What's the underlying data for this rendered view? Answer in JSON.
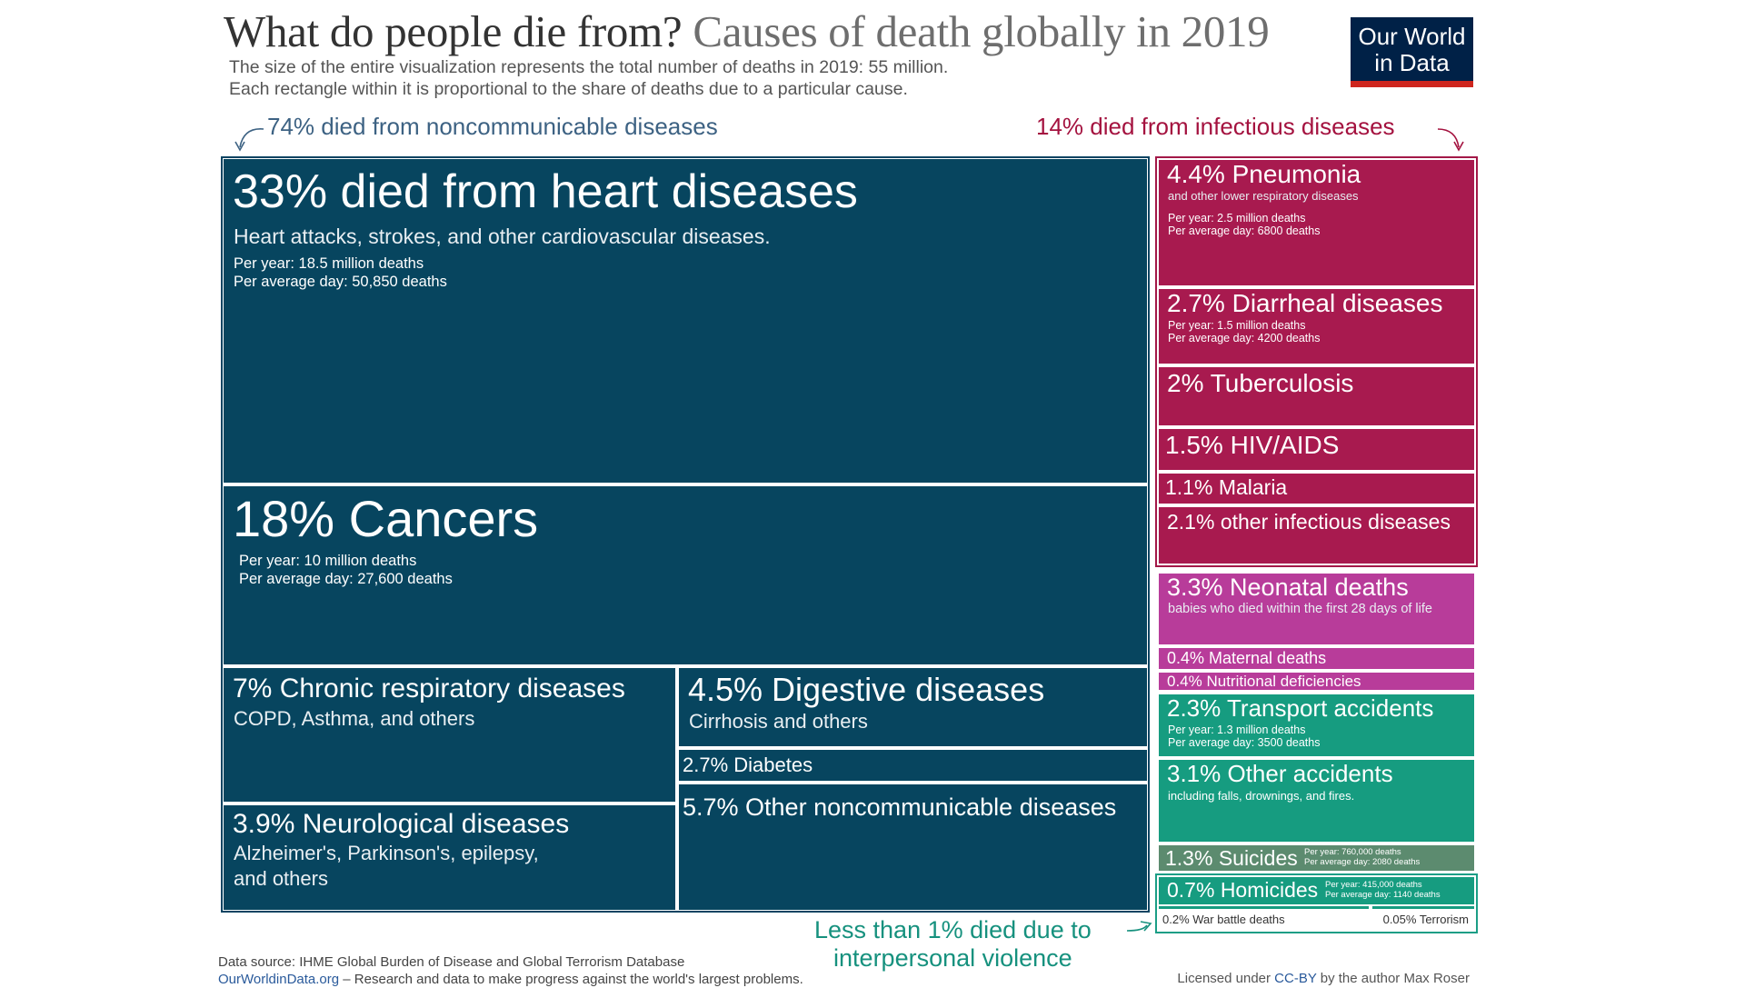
{
  "header": {
    "title_main": "What do people die from?",
    "title_sub": "Causes of death globally in 2019",
    "subtitle_1": "The size of the entire visualization represents the total number of deaths in 2019: 55 million.",
    "subtitle_2": "Each rectangle within it is proportional to the share of deaths due to a particular cause.",
    "logo_line_1": "Our World",
    "logo_line_2": "in Data"
  },
  "groups": {
    "ncd": "74% died from noncommunicable diseases",
    "infectious": "14% died from infectious diseases",
    "violence_1": "Less than 1% died due to",
    "violence_2": "interpersonal violence"
  },
  "footer": {
    "source": "Data source: IHME Global Burden of Disease and Global Terrorism Database",
    "site": "OurWorldinData.org",
    "site_tagline": " – Research and data to make progress against the world's largest problems.",
    "license_prefix": "Licensed under ",
    "license_link": "CC-BY",
    "license_suffix": " by the author Max Roser"
  },
  "colors": {
    "noncommunicable": "#07455f",
    "infectious": "#a81a4f",
    "maternal_neonatal_nutritional": "#b83c9a",
    "injuries": "#169c80",
    "suicide": "#5c8b6f",
    "brand": "#002147",
    "brand_accent": "#ce261e"
  },
  "chart_data": {
    "type": "treemap",
    "title": "What do people die from? Causes of death globally in 2019",
    "total_deaths": "55 million",
    "cells": [
      {
        "id": "heart",
        "group": "noncommunicable",
        "share": 33,
        "label": "33% died from heart diseases",
        "description": "Heart attacks, strokes, and other cardiovascular diseases.",
        "per_year": "Per year: 18.5 million deaths",
        "per_day": "Per average day: 50,850 deaths"
      },
      {
        "id": "cancers",
        "group": "noncommunicable",
        "share": 18,
        "label": "18% Cancers",
        "description": "",
        "per_year": "Per year: 10 million deaths",
        "per_day": "Per average day: 27,600 deaths"
      },
      {
        "id": "respiratory",
        "group": "noncommunicable",
        "share": 7,
        "label": "7% Chronic respiratory diseases",
        "description": "COPD, Asthma, and others",
        "per_year": "",
        "per_day": ""
      },
      {
        "id": "digestive",
        "group": "noncommunicable",
        "share": 4.5,
        "label": "4.5% Digestive diseases",
        "description": "Cirrhosis and others",
        "per_year": "",
        "per_day": ""
      },
      {
        "id": "diabetes",
        "group": "noncommunicable",
        "share": 2.7,
        "label": "2.7% Diabetes",
        "description": "",
        "per_year": "",
        "per_day": ""
      },
      {
        "id": "neuro",
        "group": "noncommunicable",
        "share": 3.9,
        "label": "3.9% Neurological diseases",
        "description": "Alzheimer's, Parkinson's, epilepsy,",
        "description_2": "and others",
        "per_year": "",
        "per_day": ""
      },
      {
        "id": "other_ncd",
        "group": "noncommunicable",
        "share": 5.7,
        "label": "5.7% Other noncommunicable diseases",
        "description": "",
        "per_year": "",
        "per_day": ""
      },
      {
        "id": "pneumonia",
        "group": "infectious",
        "share": 4.4,
        "label": "4.4% Pneumonia",
        "description": "and other lower respiratory diseases",
        "per_year": "Per year: 2.5 million deaths",
        "per_day": "Per average day: 6800 deaths"
      },
      {
        "id": "diarrheal",
        "group": "infectious",
        "share": 2.7,
        "label": "2.7% Diarrheal diseases",
        "description": "",
        "per_year": "Per year: 1.5 million deaths",
        "per_day": "Per average day: 4200 deaths"
      },
      {
        "id": "tb",
        "group": "infectious",
        "share": 2,
        "label": "2% Tuberculosis",
        "description": "",
        "per_year": "",
        "per_day": ""
      },
      {
        "id": "hiv",
        "group": "infectious",
        "share": 1.5,
        "label": "1.5% HIV/AIDS",
        "description": "",
        "per_year": "",
        "per_day": ""
      },
      {
        "id": "malaria",
        "group": "infectious",
        "share": 1.1,
        "label": "1.1% Malaria",
        "description": "",
        "per_year": "",
        "per_day": ""
      },
      {
        "id": "other_inf",
        "group": "infectious",
        "share": 2.1,
        "label": "2.1% other infectious diseases",
        "description": "",
        "per_year": "",
        "per_day": ""
      },
      {
        "id": "neonatal",
        "group": "maternal_neonatal_nutritional",
        "share": 3.3,
        "label": "3.3% Neonatal deaths",
        "description": "babies who died within the first 28 days of life",
        "per_year": "",
        "per_day": ""
      },
      {
        "id": "maternal",
        "group": "maternal_neonatal_nutritional",
        "share": 0.4,
        "label": "0.4% Maternal deaths",
        "description": "",
        "per_year": "",
        "per_day": ""
      },
      {
        "id": "nutritional",
        "group": "maternal_neonatal_nutritional",
        "share": 0.4,
        "label": "0.4% Nutritional deficiencies",
        "description": "",
        "per_year": "",
        "per_day": ""
      },
      {
        "id": "transport",
        "group": "injuries",
        "share": 2.3,
        "label": "2.3% Transport accidents",
        "description": "",
        "per_year": "Per year: 1.3 million deaths",
        "per_day": "Per average day: 3500 deaths"
      },
      {
        "id": "other_acc",
        "group": "injuries",
        "share": 3.1,
        "label": "3.1% Other accidents",
        "description": "including falls, drownings, and fires.",
        "per_year": "",
        "per_day": ""
      },
      {
        "id": "suicides",
        "group": "injuries",
        "share": 1.3,
        "label": "1.3% Suicides",
        "description": "",
        "per_year": "Per year: 760,000 deaths",
        "per_day": "Per average day: 2080 deaths"
      },
      {
        "id": "homicides",
        "group": "violence",
        "share": 0.7,
        "label": "0.7% Homicides",
        "description": "",
        "per_year": "Per year: 415,000 deaths",
        "per_day": "Per average day: 1140 deaths"
      },
      {
        "id": "war",
        "group": "violence",
        "share": 0.2,
        "label": "0.2% War battle deaths",
        "description": "",
        "per_year": "",
        "per_day": ""
      },
      {
        "id": "terrorism",
        "group": "violence",
        "share": 0.05,
        "label": "0.05% Terrorism",
        "description": "",
        "per_year": "",
        "per_day": ""
      }
    ]
  }
}
